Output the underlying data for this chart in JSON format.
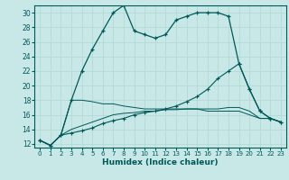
{
  "xlabel": "Humidex (Indice chaleur)",
  "bg_color": "#c8e8e8",
  "grid_color": "#b0d8d0",
  "line_color": "#005858",
  "xlim": [
    -0.5,
    23.5
  ],
  "ylim": [
    11.5,
    31.0
  ],
  "yticks": [
    12,
    14,
    16,
    18,
    20,
    22,
    24,
    26,
    28,
    30
  ],
  "xticks": [
    0,
    1,
    2,
    3,
    4,
    5,
    6,
    7,
    8,
    9,
    10,
    11,
    12,
    13,
    14,
    15,
    16,
    17,
    18,
    19,
    20,
    21,
    22,
    23
  ],
  "series": {
    "line1_x": [
      0,
      1,
      2,
      3,
      4,
      5,
      6,
      7,
      8,
      9,
      10,
      11,
      12,
      13,
      14,
      15,
      16,
      17,
      18,
      19,
      20,
      21,
      22,
      23
    ],
    "line1_y": [
      12.5,
      11.8,
      13.2,
      18.0,
      22.0,
      25.0,
      27.5,
      30.0,
      31.0,
      27.5,
      27.0,
      26.5,
      27.0,
      29.0,
      29.5,
      30.0,
      30.0,
      30.0,
      29.5,
      23.0,
      19.5,
      16.5,
      15.5,
      15.0
    ],
    "line2_x": [
      0,
      1,
      2,
      3,
      4,
      5,
      6,
      7,
      8,
      9,
      10,
      11,
      12,
      13,
      14,
      15,
      16,
      17,
      18,
      19,
      20,
      21,
      22,
      23
    ],
    "line2_y": [
      12.5,
      11.8,
      13.2,
      13.5,
      13.8,
      14.2,
      14.8,
      15.2,
      15.5,
      16.0,
      16.3,
      16.5,
      16.8,
      17.2,
      17.8,
      18.5,
      19.5,
      21.0,
      22.0,
      23.0,
      19.5,
      16.5,
      15.5,
      15.0
    ],
    "line3_x": [
      0,
      1,
      2,
      3,
      4,
      5,
      6,
      7,
      8,
      9,
      10,
      11,
      12,
      13,
      14,
      15,
      16,
      17,
      18,
      19,
      20,
      21,
      22,
      23
    ],
    "line3_y": [
      12.5,
      11.8,
      13.2,
      18.0,
      18.0,
      17.8,
      17.5,
      17.5,
      17.2,
      17.0,
      16.8,
      16.8,
      16.8,
      16.8,
      16.8,
      16.8,
      16.8,
      16.8,
      17.0,
      17.0,
      16.5,
      15.5,
      15.5,
      15.0
    ],
    "line4_x": [
      0,
      1,
      2,
      3,
      4,
      5,
      6,
      7,
      8,
      9,
      10,
      11,
      12,
      13,
      14,
      15,
      16,
      17,
      18,
      19,
      20,
      21,
      22,
      23
    ],
    "line4_y": [
      12.5,
      11.8,
      13.2,
      14.0,
      14.5,
      15.0,
      15.5,
      16.0,
      16.2,
      16.3,
      16.5,
      16.5,
      16.7,
      16.7,
      16.8,
      16.8,
      16.5,
      16.5,
      16.5,
      16.5,
      16.0,
      15.5,
      15.5,
      15.0
    ]
  }
}
